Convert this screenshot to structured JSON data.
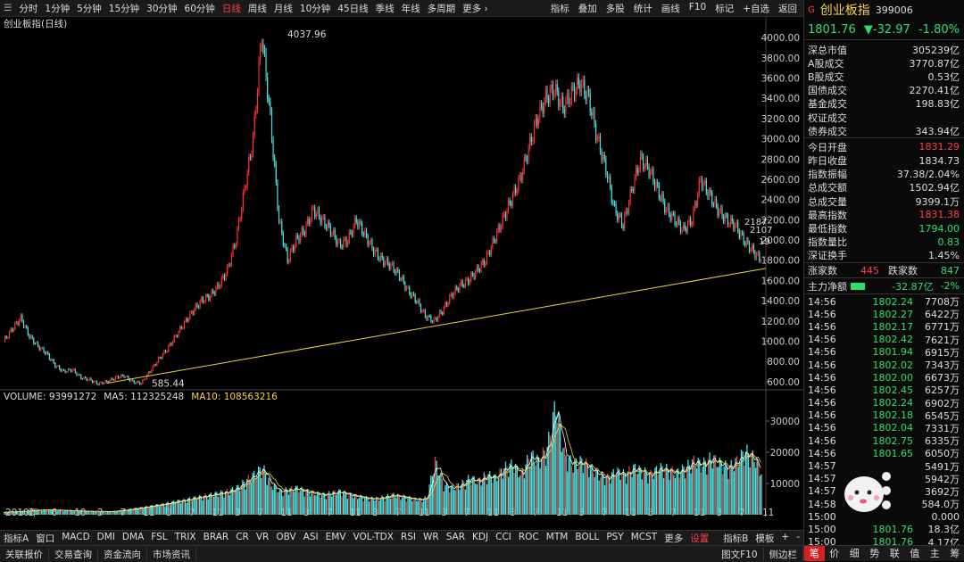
{
  "toolbar": {
    "left": [
      "分时",
      "1分钟",
      "5分钟",
      "15分钟",
      "30分钟",
      "60分钟",
      "日线",
      "周线",
      "月线",
      "10分钟",
      "45日线",
      "季线",
      "年线",
      "多周期",
      "更多 ›"
    ],
    "active": "日线",
    "right": [
      "指标",
      "叠加",
      "多股",
      "统计",
      "画线",
      "F10",
      "标记",
      "+自选",
      "返回"
    ]
  },
  "chart": {
    "title": "创业板指(日线)",
    "annotations": {
      "high": "4037.96",
      "low": "585.44",
      "tag1": "2187",
      "tag2": "2107",
      "tag3": "19"
    },
    "volume_legend": {
      "volume": "VOLUME: 93991272",
      "ma5": "MA5: 112325248",
      "ma10": "MA10: 108563216"
    },
    "unit_label": "X1万",
    "period_label": "日线"
  },
  "chart_data": {
    "type": "line",
    "price_axis": {
      "ticks": [
        600,
        800,
        1000,
        1200,
        1400,
        1600,
        1800,
        2000,
        2200,
        2400,
        2600,
        2800,
        3000,
        3200,
        3400,
        3600,
        3800,
        4000
      ],
      "range": [
        520,
        4080
      ]
    },
    "volume_axis": {
      "ticks": [
        10000,
        20000,
        30000
      ],
      "range": [
        0,
        36000
      ]
    },
    "x_labels": [
      "2010年",
      "2",
      "6",
      "10",
      "3",
      "7",
      "11",
      "3",
      "7",
      "11",
      "3",
      "7",
      "11",
      "3",
      "7",
      "11",
      "3",
      "7",
      "11",
      "3",
      "7",
      "11",
      "3",
      "7",
      "11",
      "3",
      "7",
      "11",
      "3",
      "7",
      "11",
      "3",
      "7",
      "11"
    ],
    "price_series": [
      1000,
      1120,
      1230,
      1050,
      950,
      880,
      760,
      700,
      720,
      640,
      620,
      580,
      600,
      640,
      660,
      600,
      585,
      700,
      820,
      920,
      1050,
      1180,
      1300,
      1400,
      1450,
      1550,
      1700,
      2000,
      2500,
      3000,
      4037,
      3200,
      2200,
      1800,
      2000,
      2100,
      2300,
      2200,
      2100,
      1950,
      2000,
      2200,
      2050,
      1900,
      1800,
      1750,
      1650,
      1500,
      1400,
      1250,
      1200,
      1300,
      1450,
      1550,
      1600,
      1700,
      1800,
      2000,
      2200,
      2400,
      2600,
      2900,
      3200,
      3400,
      3500,
      3300,
      3450,
      3550,
      3400,
      3000,
      2700,
      2300,
      2150,
      2500,
      2800,
      2700,
      2500,
      2300,
      2200,
      2100,
      2200,
      2600,
      2450,
      2300,
      2200,
      2150,
      2000,
      1900,
      1801
    ],
    "volume_series": [
      800,
      900,
      1000,
      1200,
      1400,
      1500,
      1400,
      1300,
      1200,
      1100,
      1000,
      1000,
      900,
      1100,
      1400,
      1800,
      2200,
      2600,
      3000,
      3500,
      4000,
      4500,
      5000,
      5500,
      6000,
      6500,
      7000,
      8000,
      10000,
      12000,
      14000,
      9000,
      7000,
      7500,
      8000,
      7000,
      6500,
      6000,
      6500,
      7000,
      6000,
      5500,
      5000,
      4800,
      5200,
      6000,
      5500,
      5000,
      4500,
      5000,
      16000,
      9000,
      8000,
      9000,
      11000,
      10000,
      12000,
      11000,
      14000,
      15000,
      12000,
      18000,
      16000,
      20000,
      33000,
      18000,
      15000,
      16000,
      14000,
      12000,
      11000,
      13000,
      12000,
      14000,
      13000,
      12000,
      14000,
      13500,
      12500,
      14000,
      16000,
      15000,
      17000,
      15500,
      14000,
      16000,
      19000,
      17000,
      12000
    ],
    "trendline": {
      "from": [
        0.135,
        585
      ],
      "to": [
        1.0,
        1720
      ]
    }
  },
  "bottom_tabs": {
    "left": [
      "指标A",
      "窗口",
      "MACD",
      "DMI",
      "DMA",
      "FSL",
      "TRIX",
      "BRAR",
      "CR",
      "VR",
      "OBV",
      "ASI",
      "EMV",
      "VOL-TDX",
      "RSI",
      "WR",
      "SAR",
      "KDJ",
      "CCI",
      "ROC",
      "MTM",
      "BOLL",
      "PSY",
      "MCST",
      "更多",
      "设置"
    ],
    "active": "设置",
    "right": [
      "指标B",
      "模板",
      "+",
      "-"
    ]
  },
  "status_bar": {
    "left": [
      "关联报价",
      "交易查询",
      "资金流向",
      "市场资讯"
    ],
    "right": [
      "图文F10",
      "侧边栏"
    ]
  },
  "panel": {
    "g": "G",
    "name": "创业板指",
    "code": "399006",
    "price": "1801.76",
    "change": "▼-32.97",
    "change_pct": "-1.80%",
    "stats": [
      {
        "k": "深总市值",
        "v": "305239亿",
        "c": ""
      },
      {
        "k": "A股成交",
        "v": "3770.87亿",
        "c": ""
      },
      {
        "k": "B股成交",
        "v": "0.53亿",
        "c": ""
      },
      {
        "k": "国债成交",
        "v": "2270.41亿",
        "c": ""
      },
      {
        "k": "基金成交",
        "v": "198.83亿",
        "c": ""
      },
      {
        "k": "权证成交",
        "v": "",
        "c": ""
      },
      {
        "k": "债券成交",
        "v": "343.94亿",
        "c": ""
      }
    ],
    "stats2": [
      {
        "k": "今日开盘",
        "v": "1831.29",
        "c": "red"
      },
      {
        "k": "昨日收盘",
        "v": "1834.73",
        "c": ""
      },
      {
        "k": "指数振幅",
        "v": "37.38/2.04%",
        "c": ""
      },
      {
        "k": "总成交额",
        "v": "1502.94亿",
        "c": ""
      },
      {
        "k": "总成交量",
        "v": "9399.1万",
        "c": ""
      },
      {
        "k": "最高指数",
        "v": "1831.38",
        "c": "red"
      },
      {
        "k": "最低指数",
        "v": "1794.00",
        "c": "green"
      },
      {
        "k": "指数量比",
        "v": "0.83",
        "c": "green"
      },
      {
        "k": "深证换手",
        "v": "1.45%",
        "c": ""
      }
    ],
    "updown": {
      "up_label": "涨家数",
      "up": "445",
      "down_label": "跌家数",
      "down": "847"
    },
    "net": {
      "label": "主力净额",
      "value": "-32.87亿",
      "pct": "-2%"
    },
    "trades": [
      {
        "t": "14:56",
        "p": "1802.24",
        "v": "7708万"
      },
      {
        "t": "14:56",
        "p": "1802.27",
        "v": "6422万"
      },
      {
        "t": "14:56",
        "p": "1802.17",
        "v": "6771万"
      },
      {
        "t": "14:56",
        "p": "1802.42",
        "v": "7621万"
      },
      {
        "t": "14:56",
        "p": "1801.94",
        "v": "6915万"
      },
      {
        "t": "14:56",
        "p": "1802.02",
        "v": "7343万"
      },
      {
        "t": "14:56",
        "p": "1802.00",
        "v": "6673万"
      },
      {
        "t": "14:56",
        "p": "1802.45",
        "v": "6257万"
      },
      {
        "t": "14:56",
        "p": "1802.24",
        "v": "6902万"
      },
      {
        "t": "14:56",
        "p": "1802.18",
        "v": "6545万"
      },
      {
        "t": "14:56",
        "p": "1802.04",
        "v": "7331万"
      },
      {
        "t": "14:56",
        "p": "1802.75",
        "v": "6335万"
      },
      {
        "t": "14:56",
        "p": "1801.65",
        "v": "6050万"
      },
      {
        "t": "14:57",
        "p": "",
        "v": "5491万"
      },
      {
        "t": "14:57",
        "p": "",
        "v": "5942万"
      },
      {
        "t": "14:57",
        "p": "",
        "v": "3692万"
      },
      {
        "t": "14:58",
        "p": "",
        "v": "584.0万"
      },
      {
        "t": "15:00",
        "p": "",
        "v": "0.000"
      },
      {
        "t": "15:00",
        "p": "1801.76",
        "v": "18.3亿"
      },
      {
        "t": "15:00",
        "p": "1801.76",
        "v": "4.17亿"
      }
    ],
    "bottom_tabs": [
      "笔",
      "价",
      "细",
      "势",
      "联",
      "值",
      "主",
      "筹"
    ],
    "bottom_active": "笔"
  }
}
